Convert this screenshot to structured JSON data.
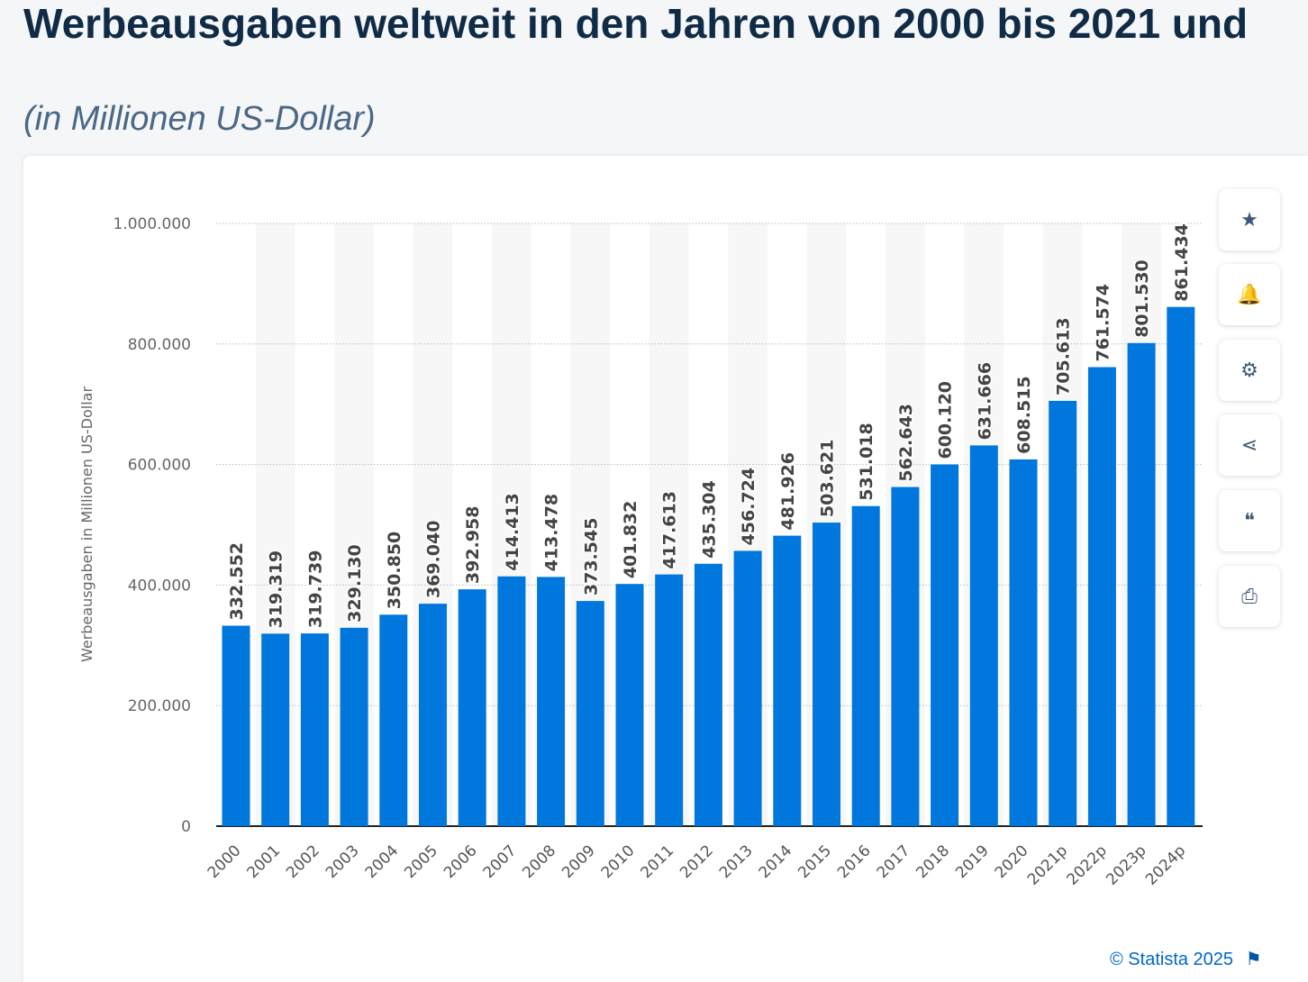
{
  "header": {
    "title": "Werbeausgaben weltweit in den Jahren von 2000 bis 2021 und",
    "subtitle": "(in Millionen US-Dollar)"
  },
  "chart_data": {
    "type": "bar",
    "title": "Werbeausgaben weltweit in den Jahren von 2000 bis 2021 und",
    "subtitle": "(in Millionen US-Dollar)",
    "ylabel": "Werbeausgaben in Millionen US-Dollar",
    "xlabel": "",
    "ylim": [
      0,
      1000000
    ],
    "yticks": [
      0,
      200000,
      400000,
      600000,
      800000,
      1000000
    ],
    "ytick_labels": [
      "0",
      "200.000",
      "400.000",
      "600.000",
      "800.000",
      "1.000.000"
    ],
    "grid": true,
    "color": "#0077dd",
    "categories": [
      "2000",
      "2001",
      "2002",
      "2003",
      "2004",
      "2005",
      "2006",
      "2007",
      "2008",
      "2009",
      "2010",
      "2011",
      "2012",
      "2013",
      "2014",
      "2015",
      "2016",
      "2017",
      "2018",
      "2019",
      "2020",
      "2021p",
      "2022p",
      "2023p",
      "2024p"
    ],
    "values": [
      332552,
      319319,
      319739,
      329130,
      350850,
      369040,
      392958,
      414413,
      413478,
      373545,
      401832,
      417613,
      435304,
      456724,
      481926,
      503621,
      531018,
      562643,
      600120,
      631666,
      608515,
      705613,
      761574,
      801530,
      861434
    ],
    "data_labels": [
      "332.552",
      "319.319",
      "319.739",
      "329.130",
      "350.850",
      "369.040",
      "392.958",
      "414.413",
      "413.478",
      "373.545",
      "401.832",
      "417.613",
      "435.304",
      "456.724",
      "481.926",
      "503.621",
      "531.018",
      "562.643",
      "600.120",
      "631.666",
      "608.515",
      "705.613",
      "761.574",
      "801.530",
      "861.434"
    ]
  },
  "toolbar": [
    {
      "icon": "star-icon",
      "glyph": "★"
    },
    {
      "icon": "bell-icon",
      "glyph": "🔔"
    },
    {
      "icon": "gear-icon",
      "glyph": "⚙"
    },
    {
      "icon": "share-icon",
      "glyph": "⋖"
    },
    {
      "icon": "quote-icon",
      "glyph": "❝"
    },
    {
      "icon": "print-icon",
      "glyph": "⎙"
    }
  ],
  "footer": {
    "credit": "© Statista 2025",
    "flag_glyph": "⚑"
  }
}
